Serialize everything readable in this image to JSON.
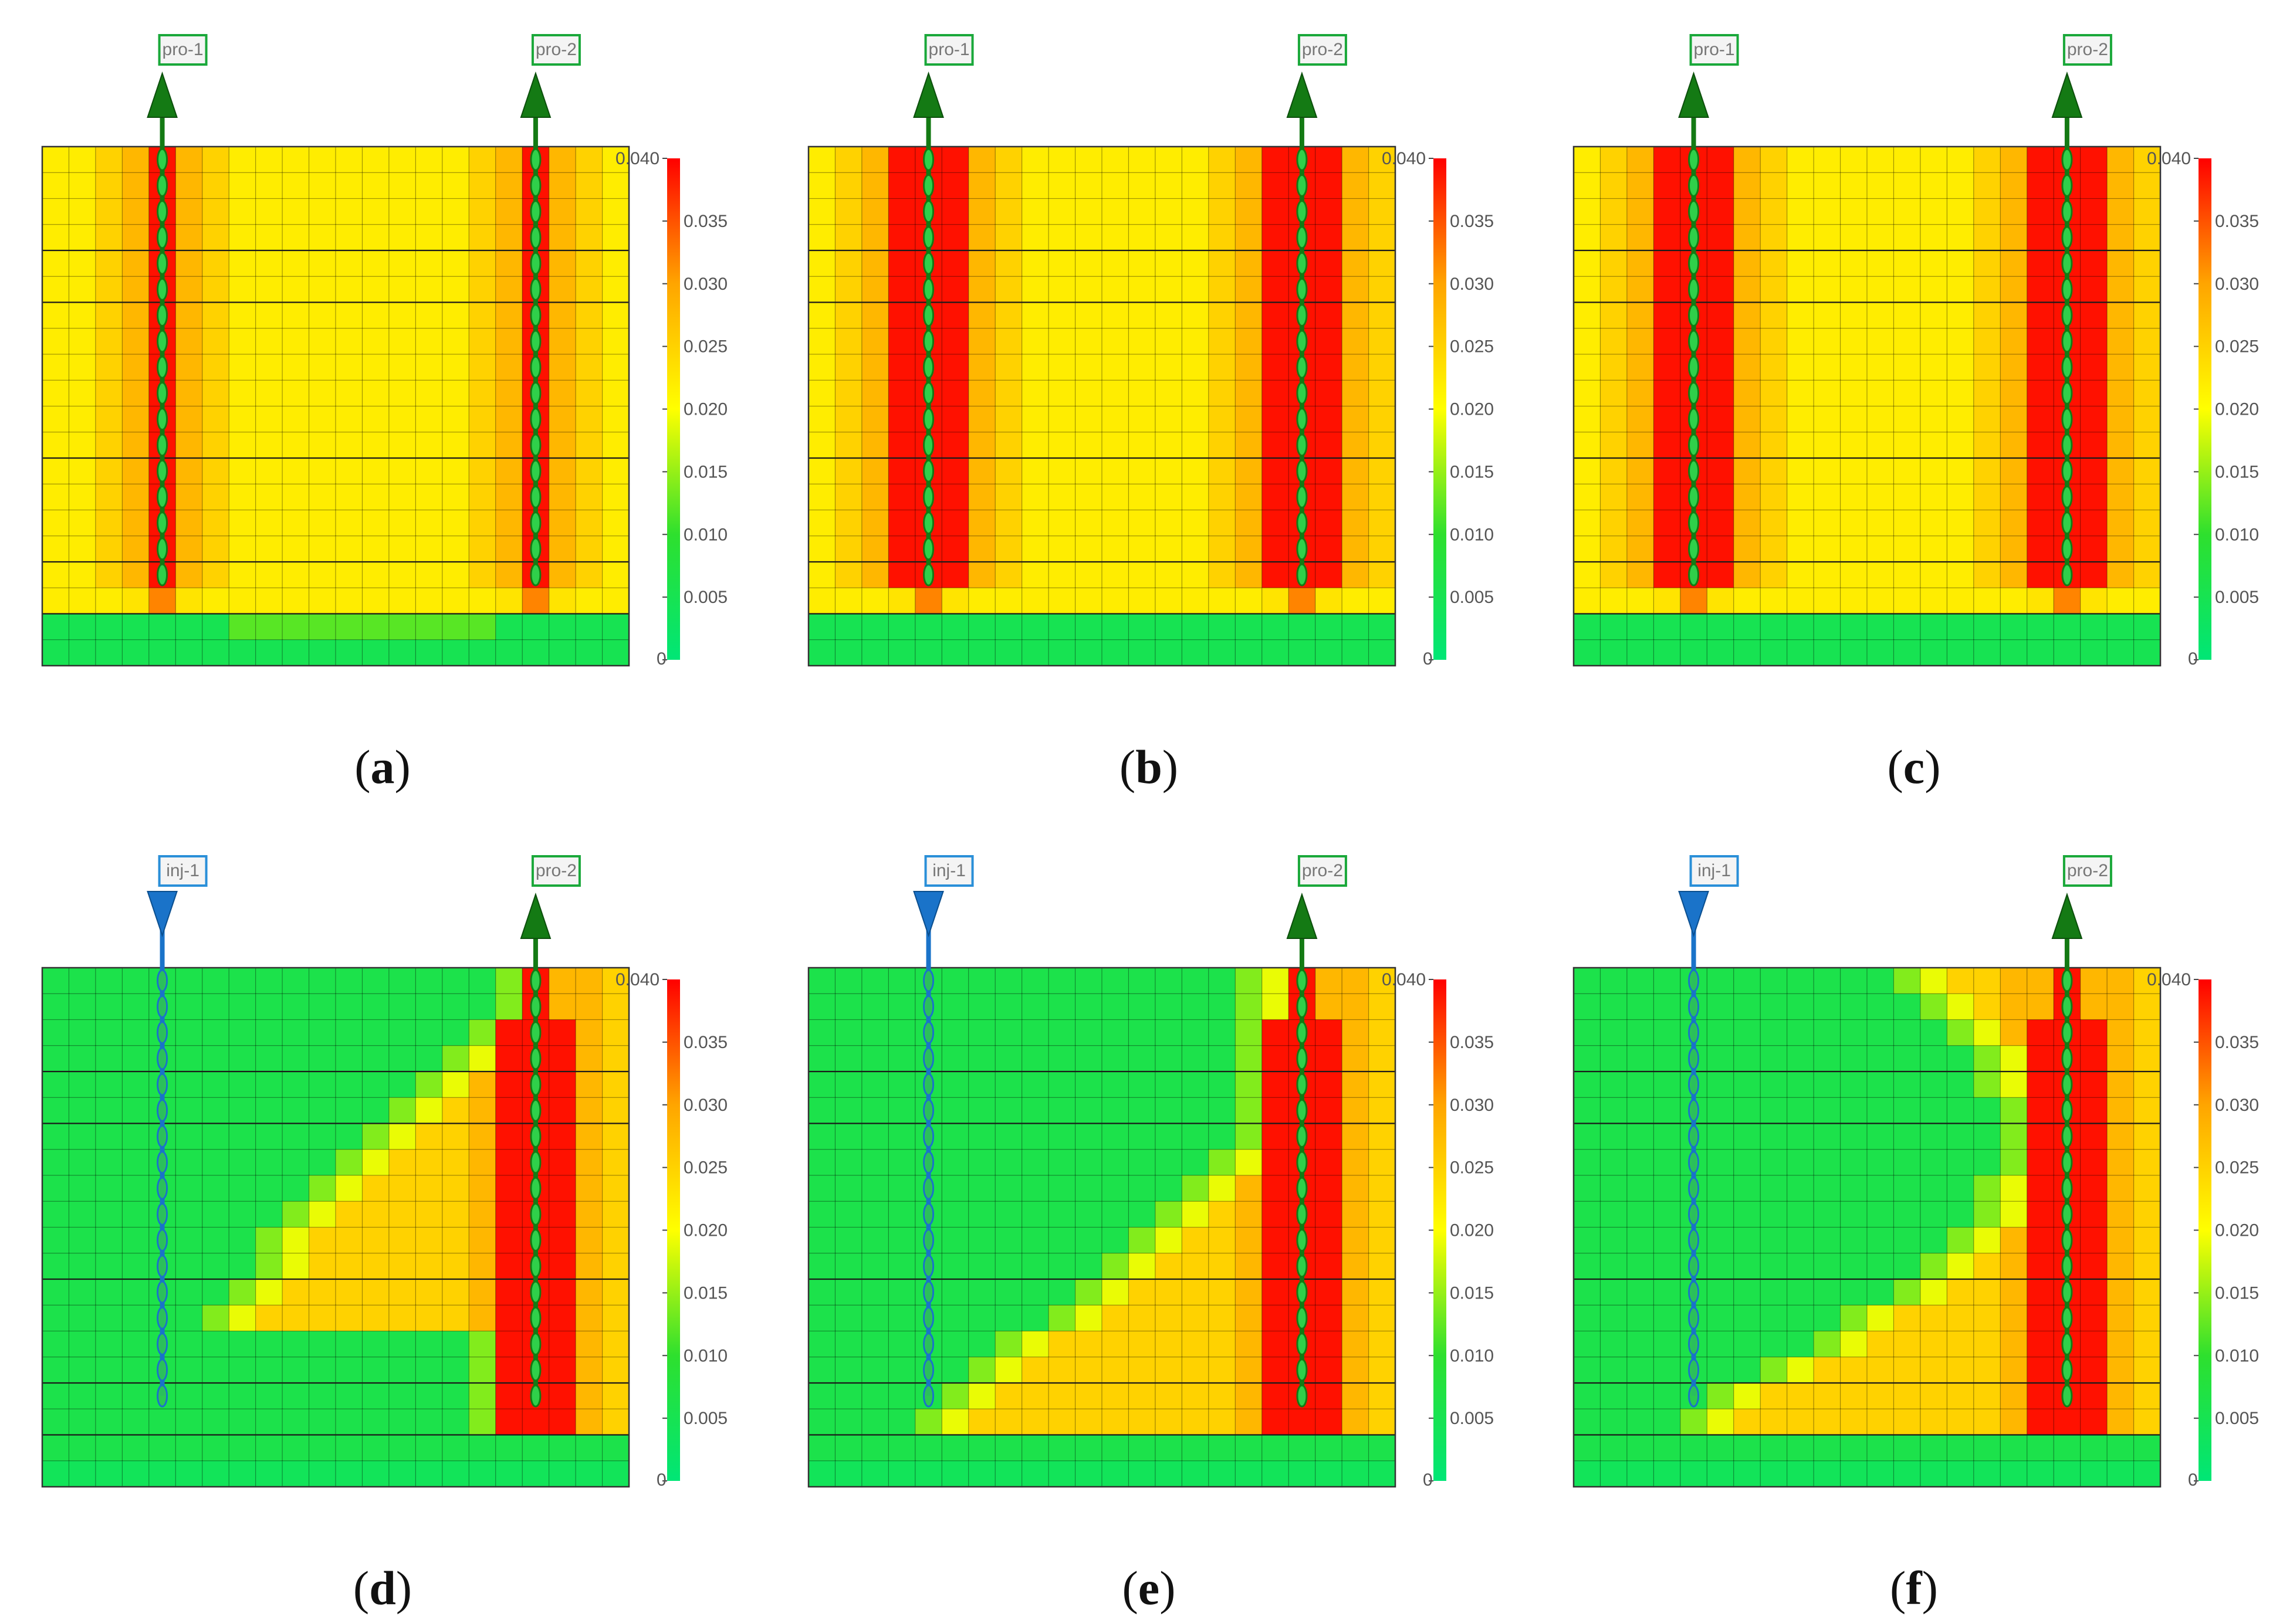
{
  "figure": {
    "panels": [
      {
        "id": "a",
        "caption_open": "(",
        "caption_letter": "a",
        "caption_close": ")",
        "wells": [
          {
            "name": "pro-1",
            "kind": "producer"
          },
          {
            "name": "pro-2",
            "kind": "producer"
          }
        ],
        "scenario": "production-initial"
      },
      {
        "id": "b",
        "caption_open": "(",
        "caption_letter": "b",
        "caption_close": ")",
        "wells": [
          {
            "name": "pro-1",
            "kind": "producer"
          },
          {
            "name": "pro-2",
            "kind": "producer"
          }
        ],
        "scenario": "production-wide"
      },
      {
        "id": "c",
        "caption_open": "(",
        "caption_letter": "c",
        "caption_close": ")",
        "wells": [
          {
            "name": "pro-1",
            "kind": "producer"
          },
          {
            "name": "pro-2",
            "kind": "producer"
          }
        ],
        "scenario": "production-medium"
      },
      {
        "id": "d",
        "caption_open": "(",
        "caption_letter": "d",
        "caption_close": ")",
        "wells": [
          {
            "name": "inj-1",
            "kind": "injector"
          },
          {
            "name": "pro-2",
            "kind": "producer"
          }
        ],
        "scenario": "injection-top-front"
      },
      {
        "id": "e",
        "caption_open": "(",
        "caption_letter": "e",
        "caption_close": ")",
        "wells": [
          {
            "name": "inj-1",
            "kind": "injector"
          },
          {
            "name": "pro-2",
            "kind": "producer"
          }
        ],
        "scenario": "injection-bottom-front"
      },
      {
        "id": "f",
        "caption_open": "(",
        "caption_letter": "f",
        "caption_close": ")",
        "wells": [
          {
            "name": "inj-1",
            "kind": "injector"
          },
          {
            "name": "pro-2",
            "kind": "producer"
          }
        ],
        "scenario": "injection-bulb-front"
      }
    ],
    "colorbar": {
      "ticks": [
        "0",
        "0.005",
        "0.010",
        "0.015",
        "0.020",
        "0.025",
        "0.030",
        "0.035",
        "0.040"
      ],
      "min": 0,
      "max": 0.04,
      "colors": [
        "#00e676",
        "#2ee02e",
        "#ffff00",
        "#ffa500",
        "#ff0000"
      ]
    },
    "well_colors": {
      "producer": "#147a14",
      "injector": "#1a73c9",
      "well_label_border_producer": "#1aa83a",
      "well_label_border_injector": "#2a8fd8"
    }
  },
  "chart_data": [
    {
      "type": "heatmap",
      "panel": "a",
      "colorbar_range": [
        0,
        0.04
      ],
      "colorbar_ticks": [
        0,
        0.005,
        0.01,
        0.015,
        0.02,
        0.025,
        0.03,
        0.035,
        0.04
      ],
      "annotations": [
        "pro-1",
        "pro-2"
      ]
    },
    {
      "type": "heatmap",
      "panel": "b",
      "colorbar_range": [
        0,
        0.04
      ],
      "colorbar_ticks": [
        0,
        0.005,
        0.01,
        0.015,
        0.02,
        0.025,
        0.03,
        0.035,
        0.04
      ],
      "annotations": [
        "pro-1",
        "pro-2"
      ]
    },
    {
      "type": "heatmap",
      "panel": "c",
      "colorbar_range": [
        0,
        0.04
      ],
      "colorbar_ticks": [
        0,
        0.005,
        0.01,
        0.015,
        0.02,
        0.025,
        0.03,
        0.035,
        0.04
      ],
      "annotations": [
        "pro-1",
        "pro-2"
      ]
    },
    {
      "type": "heatmap",
      "panel": "d",
      "colorbar_range": [
        0,
        0.04
      ],
      "colorbar_ticks": [
        0,
        0.005,
        0.01,
        0.015,
        0.02,
        0.025,
        0.03,
        0.035,
        0.04
      ],
      "annotations": [
        "inj-1",
        "pro-2"
      ]
    },
    {
      "type": "heatmap",
      "panel": "e",
      "colorbar_range": [
        0,
        0.04
      ],
      "colorbar_ticks": [
        0,
        0.005,
        0.01,
        0.015,
        0.02,
        0.025,
        0.03,
        0.035,
        0.04
      ],
      "annotations": [
        "inj-1",
        "pro-2"
      ]
    },
    {
      "type": "heatmap",
      "panel": "f",
      "colorbar_range": [
        0,
        0.04
      ],
      "colorbar_ticks": [
        0,
        0.005,
        0.01,
        0.015,
        0.02,
        0.025,
        0.03,
        0.035,
        0.04
      ],
      "annotations": [
        "inj-1",
        "pro-2"
      ]
    }
  ]
}
